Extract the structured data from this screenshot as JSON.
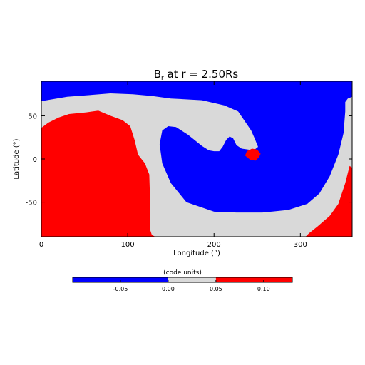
{
  "chart_data": {
    "type": "heatmap",
    "title_main": "B",
    "title_sub": "r",
    "title_rest": " at r = 2.50Rs",
    "xlabel": "Longitude (°)",
    "ylabel": "Latitude (°)",
    "xlim": [
      0,
      360
    ],
    "ylim": [
      -90,
      90
    ],
    "xticks": [
      0,
      100,
      200,
      300
    ],
    "yticks": [
      50,
      0,
      -50
    ],
    "grid": false,
    "levels": [
      {
        "name": "negative",
        "range": [
          -0.1,
          0.0
        ],
        "color": "#0000ff"
      },
      {
        "name": "neutral",
        "range": [
          0.0,
          0.05
        ],
        "color": "#d9d9d9"
      },
      {
        "name": "positive",
        "range": [
          0.05,
          0.13
        ],
        "color": "#ff0000"
      }
    ],
    "regions": [
      {
        "level": "negative",
        "name": "north-negative-band",
        "polygon": [
          [
            0,
            90
          ],
          [
            360,
            90
          ],
          [
            360,
            72
          ],
          [
            355,
            70
          ],
          [
            352,
            66
          ],
          [
            352,
            55
          ],
          [
            350,
            30
          ],
          [
            344,
            5
          ],
          [
            334,
            -20
          ],
          [
            322,
            -40
          ],
          [
            308,
            -52
          ],
          [
            286,
            -59
          ],
          [
            256,
            -62
          ],
          [
            226,
            -62
          ],
          [
            200,
            -61
          ],
          [
            168,
            -50
          ],
          [
            150,
            -28
          ],
          [
            140,
            -5
          ],
          [
            137,
            17
          ],
          [
            140,
            33
          ],
          [
            147,
            38
          ],
          [
            156,
            37
          ],
          [
            170,
            28
          ],
          [
            186,
            15
          ],
          [
            194,
            10
          ],
          [
            200,
            9
          ],
          [
            206,
            9
          ],
          [
            210,
            14
          ],
          [
            214,
            22
          ],
          [
            218,
            26
          ],
          [
            222,
            24
          ],
          [
            226,
            16
          ],
          [
            232,
            12
          ],
          [
            246,
            10
          ],
          [
            251,
            14
          ],
          [
            247,
            24
          ],
          [
            243,
            33
          ],
          [
            228,
            55
          ],
          [
            212,
            62
          ],
          [
            186,
            68
          ],
          [
            150,
            70
          ],
          [
            128,
            73
          ],
          [
            106,
            75
          ],
          [
            80,
            76
          ],
          [
            56,
            74
          ],
          [
            30,
            72
          ],
          [
            0,
            67
          ]
        ]
      },
      {
        "level": "positive",
        "name": "western-positive-region",
        "polygon": [
          [
            0,
            -90
          ],
          [
            132,
            -90
          ],
          [
            128,
            -88
          ],
          [
            126,
            -82
          ],
          [
            126,
            -50
          ],
          [
            125,
            -18
          ],
          [
            120,
            -5
          ],
          [
            112,
            5
          ],
          [
            108,
            22
          ],
          [
            103,
            38
          ],
          [
            94,
            45
          ],
          [
            80,
            50
          ],
          [
            66,
            56
          ],
          [
            52,
            54
          ],
          [
            32,
            52
          ],
          [
            20,
            48
          ],
          [
            8,
            42
          ],
          [
            0,
            36
          ]
        ]
      },
      {
        "level": "positive",
        "name": "eastern-positive-region",
        "polygon": [
          [
            360,
            -90
          ],
          [
            360,
            -10
          ],
          [
            357,
            -8
          ],
          [
            352,
            -28
          ],
          [
            344,
            -52
          ],
          [
            334,
            -66
          ],
          [
            320,
            -78
          ],
          [
            310,
            -86
          ],
          [
            306,
            -90
          ]
        ]
      },
      {
        "level": "positive",
        "name": "small-positive-island",
        "polygon": [
          [
            236,
            4
          ],
          [
            242,
            -1
          ],
          [
            248,
            -2
          ],
          [
            252,
            2
          ],
          [
            254,
            6
          ],
          [
            250,
            11
          ],
          [
            244,
            12
          ],
          [
            238,
            9
          ]
        ]
      }
    ],
    "colorbar": {
      "title": "(code units)",
      "tick_labels": [
        "-0.05",
        "0.00",
        "0.05",
        "0.10"
      ],
      "tick_values": [
        -0.05,
        0.0,
        0.05,
        0.1
      ],
      "range": [
        -0.1,
        0.13
      ]
    }
  }
}
